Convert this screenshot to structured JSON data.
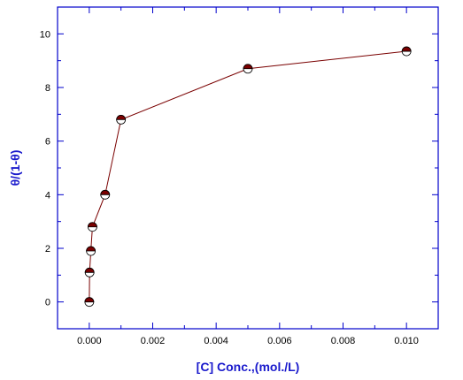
{
  "chart_data": {
    "type": "scatter",
    "title": "",
    "xlabel": "[C] Conc.,(mol./L)",
    "ylabel": "θ/(1-θ)",
    "xlim": [
      -0.001,
      0.011
    ],
    "ylim": [
      -1,
      11
    ],
    "x_ticks": [
      {
        "value": 0.0,
        "label": "0.000"
      },
      {
        "value": 0.002,
        "label": "0.002"
      },
      {
        "value": 0.004,
        "label": "0.004"
      },
      {
        "value": 0.006,
        "label": "0.006"
      },
      {
        "value": 0.008,
        "label": "0.008"
      },
      {
        "value": 0.01,
        "label": "0.010"
      }
    ],
    "y_ticks": [
      {
        "value": 0,
        "label": "0"
      },
      {
        "value": 2,
        "label": "2"
      },
      {
        "value": 4,
        "label": "4"
      },
      {
        "value": 6,
        "label": "6"
      },
      {
        "value": 8,
        "label": "8"
      },
      {
        "value": 10,
        "label": "10"
      }
    ],
    "grid": false,
    "legend": "none",
    "series": [
      {
        "x": [
          1e-06,
          1e-05,
          5e-05,
          0.0001,
          0.0005,
          0.001,
          0.005,
          0.01
        ],
        "y": [
          0.0,
          1.1,
          1.9,
          2.8,
          4.0,
          6.8,
          8.7,
          9.35
        ],
        "marker": "half-filled-circle",
        "line": true
      }
    ],
    "colors": {
      "axis": "#0000cc",
      "label": "#1a1acc",
      "line": "#7a0000",
      "marker_fill": "#7a0000",
      "marker_edge": "#000000"
    }
  }
}
